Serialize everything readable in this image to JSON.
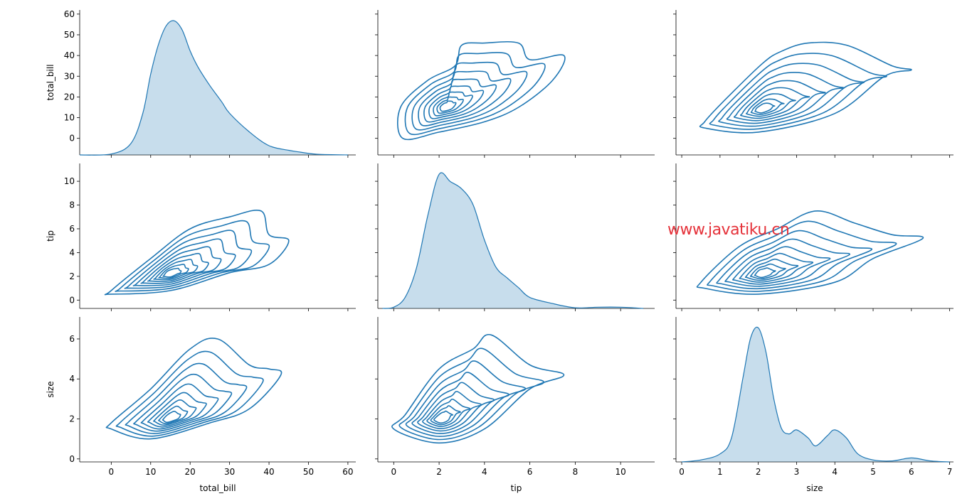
{
  "watermark": "www.javatiku.cn",
  "colors": {
    "line": "#1f77b4",
    "fill": "#1f77b4",
    "fill_opacity": 0.25
  },
  "chart_data": {
    "type": "pairplot",
    "variables": [
      "total_bill",
      "tip",
      "size"
    ],
    "axes": {
      "total_bill": {
        "range": [
          -8,
          62
        ],
        "ticks": [
          0,
          10,
          20,
          30,
          40,
          50,
          60
        ],
        "label": "total_bill"
      },
      "tip": {
        "range": [
          -0.7,
          11.5
        ],
        "ticks": [
          0,
          2,
          4,
          6,
          8,
          10
        ],
        "label": "tip"
      },
      "size": {
        "range": [
          -0.15,
          7.1
        ],
        "ticks": [
          0,
          1,
          2,
          3,
          4,
          5,
          6,
          7
        ],
        "label": "size"
      }
    },
    "row_y_ticks": {
      "total_bill": [
        0,
        10,
        20,
        30,
        40,
        50,
        60
      ],
      "tip": [
        0,
        2,
        4,
        6,
        8,
        10
      ],
      "size": [
        0,
        2,
        4,
        6
      ]
    },
    "diagonal_kde": {
      "total_bill": [
        [
          -8,
          0
        ],
        [
          0,
          0.4
        ],
        [
          5,
          5
        ],
        [
          8,
          18
        ],
        [
          10,
          35
        ],
        [
          12,
          48
        ],
        [
          14,
          56
        ],
        [
          16,
          58
        ],
        [
          18,
          54
        ],
        [
          20,
          45
        ],
        [
          22,
          38
        ],
        [
          25,
          30
        ],
        [
          28,
          23
        ],
        [
          30,
          18
        ],
        [
          35,
          10
        ],
        [
          40,
          4
        ],
        [
          45,
          2
        ],
        [
          48,
          1.2
        ],
        [
          52,
          0.3
        ],
        [
          60,
          0
        ]
      ],
      "tip": [
        [
          -0.5,
          0
        ],
        [
          0,
          0.1
        ],
        [
          0.5,
          0.9
        ],
        [
          1,
          3.3
        ],
        [
          1.5,
          7.6
        ],
        [
          2,
          11
        ],
        [
          2.5,
          10.4
        ],
        [
          3,
          9.8
        ],
        [
          3.5,
          8.5
        ],
        [
          4,
          5.6
        ],
        [
          4.5,
          3.4
        ],
        [
          5,
          2.5
        ],
        [
          5.5,
          1.7
        ],
        [
          6,
          0.9
        ],
        [
          7,
          0.4
        ],
        [
          8,
          0.05
        ],
        [
          9,
          0.1
        ],
        [
          10,
          0.1
        ],
        [
          11,
          0
        ]
      ],
      "size": [
        [
          0,
          0
        ],
        [
          0.5,
          0.1
        ],
        [
          1,
          0.4
        ],
        [
          1.3,
          1.2
        ],
        [
          1.6,
          4.2
        ],
        [
          1.8,
          6.2
        ],
        [
          2,
          6.7
        ],
        [
          2.2,
          5.5
        ],
        [
          2.4,
          3.2
        ],
        [
          2.6,
          1.7
        ],
        [
          2.8,
          1.4
        ],
        [
          3,
          1.6
        ],
        [
          3.3,
          1.2
        ],
        [
          3.5,
          0.8
        ],
        [
          3.8,
          1.3
        ],
        [
          4,
          1.6
        ],
        [
          4.3,
          1.2
        ],
        [
          4.6,
          0.4
        ],
        [
          5,
          0.1
        ],
        [
          5.5,
          0.05
        ],
        [
          6,
          0.2
        ],
        [
          6.5,
          0.05
        ],
        [
          7,
          0
        ]
      ]
    },
    "bivariate_kde": [
      {
        "x": "tip",
        "y": "total_bill",
        "center": [
          2.3,
          15
        ],
        "spread": [
          0.35,
          2.2
        ],
        "rotation_deg": 40,
        "outer": [
          [
            0.4,
            0
          ],
          [
            2,
            3
          ],
          [
            4,
            8
          ],
          [
            5.5,
            15
          ],
          [
            7,
            28
          ],
          [
            7.5,
            40
          ],
          [
            6,
            38
          ],
          [
            5.5,
            46
          ],
          [
            4,
            46
          ],
          [
            3,
            45
          ],
          [
            2.7,
            35
          ],
          [
            1.5,
            28
          ],
          [
            0.3,
            15
          ]
        ]
      },
      {
        "x": "size",
        "y": "total_bill",
        "center": [
          2.1,
          14
        ],
        "spread": [
          0.18,
          2.2
        ],
        "rotation_deg": 0,
        "outer": [
          [
            0.6,
            5
          ],
          [
            2,
            3
          ],
          [
            4,
            12
          ],
          [
            5.3,
            30
          ],
          [
            6,
            33
          ],
          [
            5.5,
            35
          ],
          [
            4.3,
            45
          ],
          [
            3.3,
            46
          ],
          [
            2.6,
            42
          ],
          [
            2.1,
            36
          ],
          [
            1.1,
            18
          ],
          [
            0.6,
            8
          ]
        ]
      },
      {
        "x": "total_bill",
        "y": "tip",
        "center": [
          15,
          2.2
        ],
        "spread": [
          2,
          0.35
        ],
        "rotation_deg": 20,
        "outer": [
          [
            0,
            0.5
          ],
          [
            15,
            0.8
          ],
          [
            30,
            2.3
          ],
          [
            40,
            3
          ],
          [
            45,
            5
          ],
          [
            40,
            5.5
          ],
          [
            38,
            7.5
          ],
          [
            30,
            7
          ],
          [
            20,
            6
          ],
          [
            10,
            3.5
          ],
          [
            0,
            0.8
          ]
        ]
      },
      {
        "x": "size",
        "y": "tip",
        "center": [
          2.1,
          2.2
        ],
        "spread": [
          0.18,
          0.4
        ],
        "rotation_deg": 0,
        "outer": [
          [
            0.6,
            1
          ],
          [
            2,
            0.5
          ],
          [
            4,
            1.5
          ],
          [
            5,
            3.5
          ],
          [
            6.3,
            5.2
          ],
          [
            5.5,
            5.5
          ],
          [
            4.5,
            6.5
          ],
          [
            3.5,
            7.5
          ],
          [
            2.5,
            6
          ],
          [
            1.5,
            4.5
          ],
          [
            0.5,
            1.5
          ]
        ]
      },
      {
        "x": "total_bill",
        "y": "size",
        "center": [
          15,
          2
        ],
        "spread": [
          2,
          0.28
        ],
        "rotation_deg": 15,
        "outer": [
          [
            0,
            1.5
          ],
          [
            10,
            1
          ],
          [
            25,
            1.8
          ],
          [
            35,
            2.5
          ],
          [
            43,
            4.2
          ],
          [
            40,
            4.5
          ],
          [
            35,
            4.7
          ],
          [
            27,
            6
          ],
          [
            20,
            5.5
          ],
          [
            10,
            3.5
          ],
          [
            0,
            1.8
          ]
        ]
      },
      {
        "x": "tip",
        "y": "size",
        "center": [
          2.1,
          2
        ],
        "spread": [
          0.4,
          0.28
        ],
        "rotation_deg": 15,
        "outer": [
          [
            0,
            1.5
          ],
          [
            2,
            0.8
          ],
          [
            4,
            1.5
          ],
          [
            6,
            3.5
          ],
          [
            7.5,
            4.2
          ],
          [
            6,
            4.7
          ],
          [
            4.3,
            6.2
          ],
          [
            3.5,
            5.5
          ],
          [
            2,
            4.5
          ],
          [
            0.5,
            2.2
          ]
        ]
      }
    ]
  }
}
